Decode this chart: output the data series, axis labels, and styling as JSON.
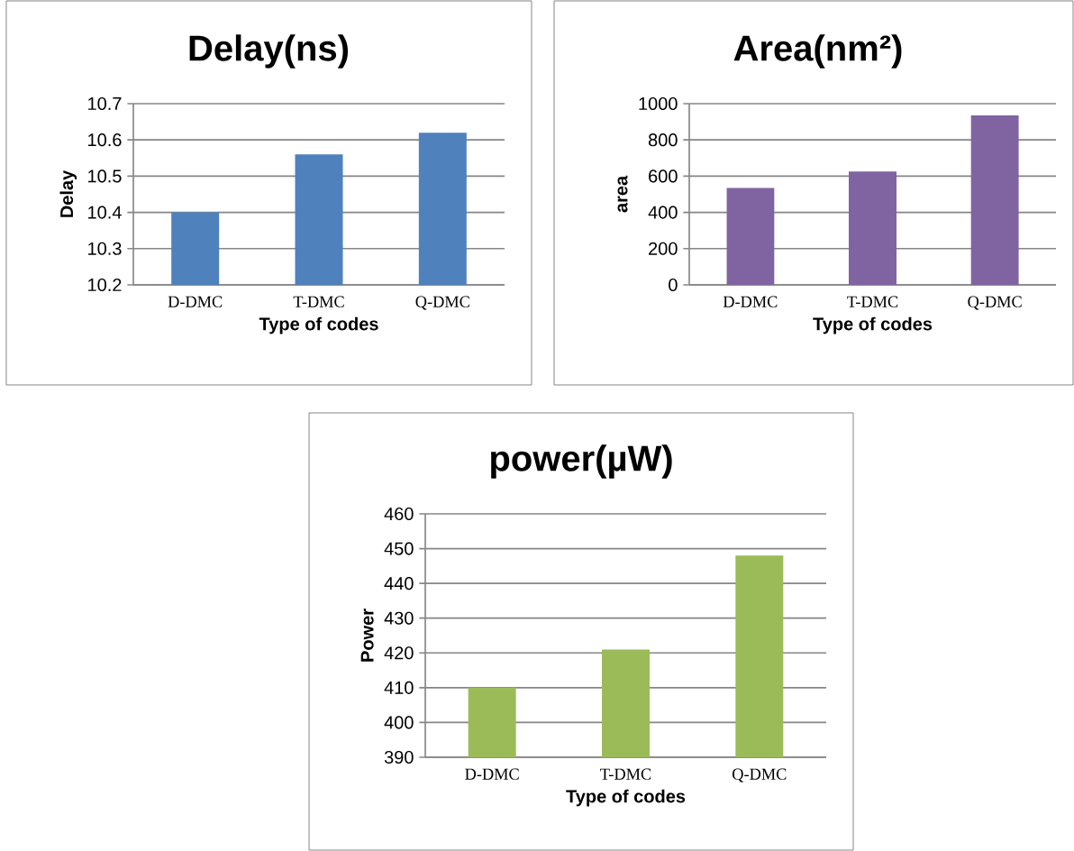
{
  "chart_data": [
    {
      "type": "bar",
      "title": "Delay(ns)",
      "xlabel": "Type of codes",
      "ylabel": "Delay",
      "categories": [
        "D-DMC",
        "T-DMC",
        "Q-DMC"
      ],
      "values": [
        10.4,
        10.56,
        10.62
      ],
      "color": "#4f81bd",
      "ylim": [
        10.2,
        10.7
      ],
      "yticks": [
        10.2,
        10.3,
        10.4,
        10.5,
        10.6,
        10.7
      ],
      "grid": "y"
    },
    {
      "type": "bar",
      "title": "Area(nm²)",
      "xlabel": "Type of codes",
      "ylabel": "area",
      "categories": [
        "D-DMC",
        "T-DMC",
        "Q-DMC"
      ],
      "values": [
        535,
        625,
        935
      ],
      "color": "#8064a2",
      "ylim": [
        0,
        1000
      ],
      "yticks": [
        0,
        200,
        400,
        600,
        800,
        1000
      ],
      "grid": "y"
    },
    {
      "type": "bar",
      "title": "power(µW)",
      "xlabel": "Type of codes",
      "ylabel": "Power",
      "categories": [
        "D-DMC",
        "T-DMC",
        "Q-DMC"
      ],
      "values": [
        410,
        421,
        448
      ],
      "color": "#9bbb59",
      "ylim": [
        390,
        460
      ],
      "yticks": [
        390,
        400,
        410,
        420,
        430,
        440,
        450,
        460
      ],
      "grid": "y"
    }
  ]
}
